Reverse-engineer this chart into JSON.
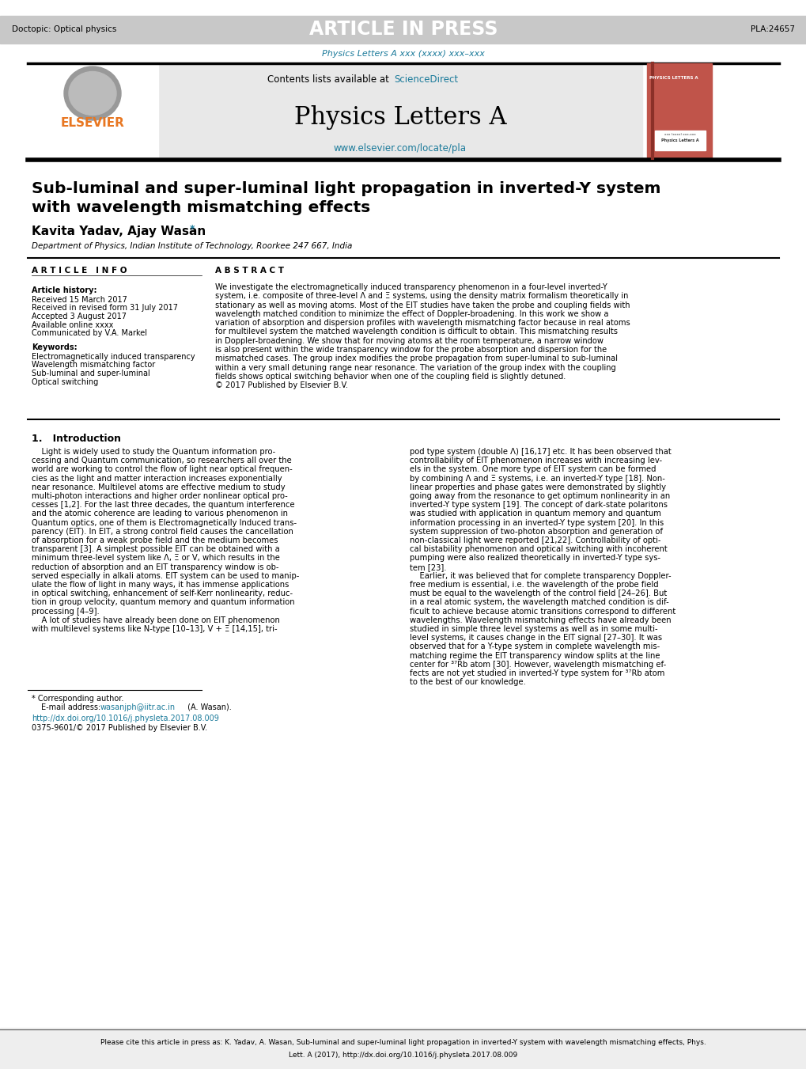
{
  "title": "Sub-luminal and super-luminal light propagation in inverted-Y system\nwith wavelength mismatching effects",
  "authors": "Kavita Yadav, Ajay Wasan",
  "affiliation": "Department of Physics, Indian Institute of Technology, Roorkee 247 667, India",
  "journal_name": "Physics Letters A",
  "journal_subtitle": "Physics Letters A xxx (xxxx) xxx–xxx",
  "journal_url": "www.elsevier.com/locate/pla",
  "sciencedirect_text": "Contents lists available at ScienceDirect",
  "article_in_press": "ARTICLE IN PRESS",
  "doctopic": "Doctopic: Optical physics",
  "article_id": "PLA:24657",
  "article_info_header": "A R T I C L E   I N F O",
  "abstract_header": "A B S T R A C T",
  "article_history_label": "Article history:",
  "received_label": "Received 15 March 2017",
  "revised_label": "Received in revised form 31 July 2017",
  "accepted_label": "Accepted 3 August 2017",
  "online_label": "Available online xxxx",
  "communicated_label": "Communicated by V.A. Markel",
  "keywords_label": "Keywords:",
  "kw1": "Electromagnetically induced transparency",
  "kw2": "Wavelength mismatching factor",
  "kw3": "Sub-luminal and super-luminal",
  "kw4": "Optical switching",
  "intro_header": "1.   Introduction",
  "footnote_star": "* Corresponding author.",
  "footnote_email_label": "E-mail address: ",
  "footnote_email": "wasanjph@iitr.ac.in",
  "footnote_email_suffix": " (A. Wasan).",
  "doi_text": "http://dx.doi.org/10.1016/j.physleta.2017.08.009",
  "copyright_text": "0375-9601/© 2017 Published by Elsevier B.V.",
  "cite_line1": "Please cite this article in press as: K. Yadav, A. Wasan, Sub-luminal and super-luminal light propagation in inverted-Y system with wavelength mismatching effects, Phys.",
  "cite_line2": "Lett. A (2017), http://dx.doi.org/10.1016/j.physleta.2017.08.009",
  "header_bg": "#c8c8c8",
  "header_text_color": "#ffffff",
  "teal_color": "#1a7a9a",
  "elsevier_orange": "#e87722",
  "journal_bg": "#e8e8e8",
  "journal_cover_bg": "#c0544a",
  "black": "#000000",
  "white": "#ffffff",
  "light_gray": "#eeeeee",
  "abstract_lines": [
    "We investigate the electromagnetically induced transparency phenomenon in a four-level inverted-Y",
    "system, i.e. composite of three-level Λ and Ξ systems, using the density matrix formalism theoretically in",
    "stationary as well as moving atoms. Most of the EIT studies have taken the probe and coupling fields with",
    "wavelength matched condition to minimize the effect of Doppler-broadening. In this work we show a",
    "variation of absorption and dispersion profiles with wavelength mismatching factor because in real atoms",
    "for multilevel system the matched wavelength condition is difficult to obtain. This mismatching results",
    "in Doppler-broadening. We show that for moving atoms at the room temperature, a narrow window",
    "is also present within the wide transparency window for the probe absorption and dispersion for the",
    "mismatched cases. The group index modifies the probe propagation from super-luminal to sub-luminal",
    "within a very small detuning range near resonance. The variation of the group index with the coupling",
    "fields shows optical switching behavior when one of the coupling field is slightly detuned.",
    "© 2017 Published by Elsevier B.V."
  ],
  "intro_left_lines": [
    "    Light is widely used to study the Quantum information pro-",
    "cessing and Quantum communication, so researchers all over the",
    "world are working to control the flow of light near optical frequen-",
    "cies as the light and matter interaction increases exponentially",
    "near resonance. Multilevel atoms are effective medium to study",
    "multi-photon interactions and higher order nonlinear optical pro-",
    "cesses [1,2]. For the last three decades, the quantum interference",
    "and the atomic coherence are leading to various phenomenon in",
    "Quantum optics, one of them is Electromagnetically Induced trans-",
    "parency (EIT). In EIT, a strong control field causes the cancellation",
    "of absorption for a weak probe field and the medium becomes",
    "transparent [3]. A simplest possible EIT can be obtained with a",
    "minimum three-level system like Λ, Ξ or V, which results in the",
    "reduction of absorption and an EIT transparency window is ob-",
    "served especially in alkali atoms. EIT system can be used to manip-",
    "ulate the flow of light in many ways, it has immense applications",
    "in optical switching, enhancement of self-Kerr nonlinearity, reduc-",
    "tion in group velocity, quantum memory and quantum information",
    "processing [4–9].",
    "    A lot of studies have already been done on EIT phenomenon",
    "with multilevel systems like N-type [10–13], V + Ξ [14,15], tri-"
  ],
  "intro_right_lines": [
    "pod type system (double Λ) [16,17] etc. It has been observed that",
    "controllability of EIT phenomenon increases with increasing lev-",
    "els in the system. One more type of EIT system can be formed",
    "by combining Λ and Ξ systems, i.e. an inverted-Y type [18]. Non-",
    "linear properties and phase gates were demonstrated by slightly",
    "going away from the resonance to get optimum nonlinearity in an",
    "inverted-Y type system [19]. The concept of dark-state polaritons",
    "was studied with application in quantum memory and quantum",
    "information processing in an inverted-Y type system [20]. In this",
    "system suppression of two-photon absorption and generation of",
    "non-classical light were reported [21,22]. Controllability of opti-",
    "cal bistability phenomenon and optical switching with incoherent",
    "pumping were also realized theoretically in inverted-Y type sys-",
    "tem [23].",
    "    Earlier, it was believed that for complete transparency Doppler-",
    "free medium is essential, i.e. the wavelength of the probe field",
    "must be equal to the wavelength of the control field [24–26]. But",
    "in a real atomic system, the wavelength matched condition is dif-",
    "ficult to achieve because atomic transitions correspond to different",
    "wavelengths. Wavelength mismatching effects have already been",
    "studied in simple three level systems as well as in some multi-",
    "level systems, it causes change in the EIT signal [27–30]. It was",
    "observed that for a Y-type system in complete wavelength mis-",
    "matching regime the EIT transparency window splits at the line",
    "center for ³⁷Rb atom [30]. However, wavelength mismatching ef-",
    "fects are not yet studied in inverted-Y type system for ³⁷Rb atom",
    "to the best of our knowledge."
  ]
}
